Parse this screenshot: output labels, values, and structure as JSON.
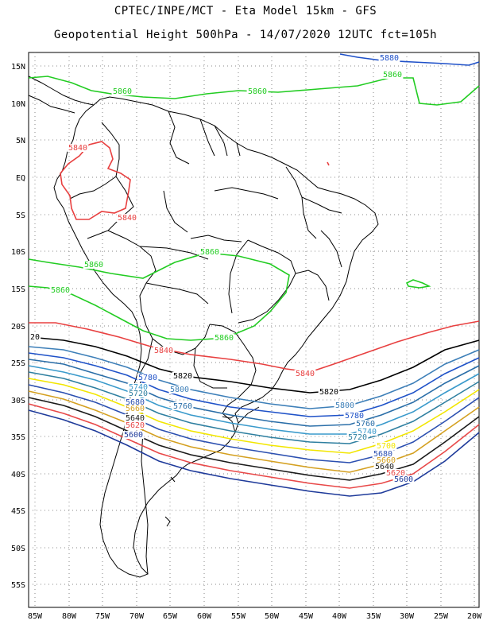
{
  "header": {
    "line1": "CPTEC/INPE/MCT -  Eta Model 15km - GFS",
    "line2": "Geopotential Height 500hPa - 14/07/2020 12UTC fct=105h"
  },
  "axes": {
    "lat_labels": [
      "15N",
      "10N",
      "5N",
      "EQ",
      "5S",
      "10S",
      "15S",
      "20S",
      "25S",
      "30S",
      "35S",
      "40S",
      "45S",
      "50S",
      "55S"
    ],
    "lon_labels": [
      "85W",
      "80W",
      "75W",
      "70W",
      "65W",
      "60W",
      "55W",
      "50W",
      "45W",
      "40W",
      "35W",
      "30W",
      "25W",
      "20W"
    ]
  },
  "contour_colors": {
    "5580": "#0d1f6b",
    "5600": "#1e3a9a",
    "5620": "#e84848",
    "5640": "#1a1a1a",
    "5660": "#d4a020",
    "5680": "#2b4fb0",
    "5700": "#f2e600",
    "5720": "#2e7fa0",
    "5740": "#3a9acb",
    "5760": "#2a6ea8",
    "5780": "#1f52c8",
    "5800": "#3d7fb8",
    "5820": "#000000",
    "5840": "#e84040",
    "5860": "#22cc22",
    "5880": "#1e50c8"
  },
  "contour_labels": [
    {
      "text": "5880",
      "color_key": "5880"
    },
    {
      "text": "5860",
      "color_key": "5860"
    },
    {
      "text": "5860",
      "color_key": "5860"
    },
    {
      "text": "5860",
      "color_key": "5860"
    },
    {
      "text": "5840",
      "color_key": "5840"
    },
    {
      "text": "5840",
      "color_key": "5840"
    },
    {
      "text": "5860",
      "color_key": "5860"
    },
    {
      "text": "5860",
      "color_key": "5860"
    },
    {
      "text": "5860",
      "color_key": "5860"
    },
    {
      "text": "5860",
      "color_key": "5860"
    },
    {
      "text": "20",
      "color_key": "5820"
    },
    {
      "text": "5840",
      "color_key": "5840"
    },
    {
      "text": "5840",
      "color_key": "5840"
    },
    {
      "text": "5820",
      "color_key": "5820"
    },
    {
      "text": "5820",
      "color_key": "5820"
    },
    {
      "text": "5780",
      "color_key": "5780"
    },
    {
      "text": "5800",
      "color_key": "5800"
    },
    {
      "text": "5740",
      "color_key": "5740"
    },
    {
      "text": "5720",
      "color_key": "5720"
    },
    {
      "text": "5760",
      "color_key": "5760"
    },
    {
      "text": "5680",
      "color_key": "5680"
    },
    {
      "text": "5660",
      "color_key": "5660"
    },
    {
      "text": "5640",
      "color_key": "5640"
    },
    {
      "text": "5620",
      "color_key": "5620"
    },
    {
      "text": "5600",
      "color_key": "5600"
    },
    {
      "text": "5800",
      "color_key": "5800"
    },
    {
      "text": "5780",
      "color_key": "5780"
    },
    {
      "text": "5760",
      "color_key": "5760"
    },
    {
      "text": "5740",
      "color_key": "5740"
    },
    {
      "text": "5720",
      "color_key": "5720"
    },
    {
      "text": "5700",
      "color_key": "5700"
    },
    {
      "text": "5680",
      "color_key": "5680"
    },
    {
      "text": "5660",
      "color_key": "5660"
    },
    {
      "text": "5640",
      "color_key": "5640"
    },
    {
      "text": "5620",
      "color_key": "5620"
    },
    {
      "text": "5600",
      "color_key": "5600"
    }
  ]
}
